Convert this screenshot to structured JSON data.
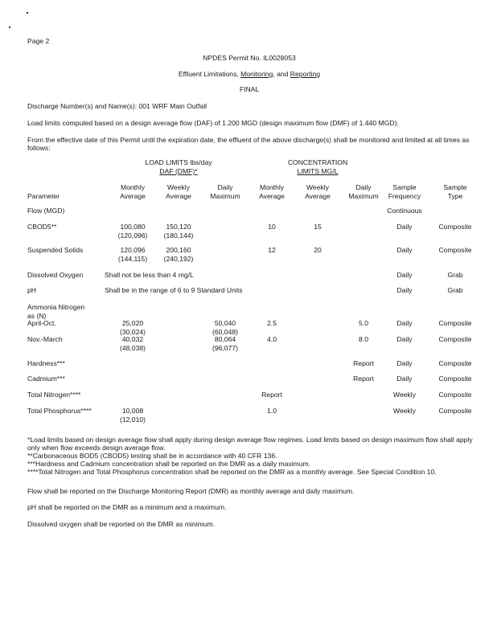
{
  "header": {
    "page_label": "Page 2",
    "permit_number": "NPDES Permit No. IL0028053",
    "section_title_plain": "Effluent Limitations, ",
    "section_title_underlined_1": "Monitoring",
    "section_title_mid": ", and ",
    "section_title_underlined_2": "Reporting",
    "status": "FINAL"
  },
  "intro": {
    "discharge": "Discharge Number(s) and Name(s): 001 WRF Main Outfall",
    "load_basis": "Load limits computed based on a design average flow (DAF) of 1.200 MGD (design maximum flow (DMF) of 1.440 MGD).",
    "effective": "From the effective date of this Permit until the expiration date, the effluent of the above discharge(s) shall be monitored and limited at all times as follows:"
  },
  "table": {
    "group_load_line1": "LOAD LIMITS lbs/day",
    "group_load_line2": "DAF (DMF)*",
    "group_conc_line1": "CONCENTRATION",
    "group_conc_line2": "LIMITS MG/L",
    "columns": {
      "param": "Parameter",
      "load_monthly": "Monthly\nAverage",
      "load_weekly": "Weekly\nAverage",
      "load_daily": "Daily\nMaximum",
      "conc_monthly": "Monthly\nAverage",
      "conc_weekly": "Weekly\nAverage",
      "conc_daily": "Daily\nMaximum",
      "frequency": "Sample\nFrequency",
      "type": "Sample\nType"
    },
    "rows": [
      {
        "param": "Flow (MGD)",
        "frequency": "Continuous"
      },
      {
        "param": "CBOD5**",
        "load_monthly": "100,080\n(120,096)",
        "load_weekly": "150,120\n(180,144)",
        "conc_monthly": "10",
        "conc_weekly": "15",
        "frequency": "Daily",
        "type": "Composite"
      },
      {
        "param": "Suspended Solids",
        "load_monthly": "120,096\n(144,115)",
        "load_weekly": "200,160\n(240,192)",
        "conc_monthly": "12",
        "conc_weekly": "20",
        "frequency": "Daily",
        "type": "Composite"
      },
      {
        "param": "Dissolved Oxygen",
        "span_text": "Shall not be less than 4 mg/L",
        "frequency": "Daily",
        "type": "Grab"
      },
      {
        "param": "pH",
        "span_text": "Shall be in the range of 6 to 9 Standard Units",
        "frequency": "Daily",
        "type": "Grab"
      },
      {
        "param": "Ammonia Nitrogen\n  as (N)"
      },
      {
        "param": "  April-Oct.",
        "load_monthly": "25,020\n(30,024)",
        "load_daily": "50,040\n(60,048)",
        "conc_monthly": "2.5",
        "conc_daily": "5.0",
        "frequency": "Daily",
        "type": "Composite"
      },
      {
        "param": "  Nov.-March",
        "load_monthly": "40,032\n(48,038)",
        "load_daily": "80,064\n(96,077)",
        "conc_monthly": "4.0",
        "conc_daily": "8.0",
        "frequency": "Daily",
        "type": "Composite"
      },
      {
        "param": "Hardness***",
        "conc_daily": "Report",
        "frequency": "Daily",
        "type": "Composite"
      },
      {
        "param": "Cadmium***",
        "conc_daily": "Report",
        "frequency": "Daily",
        "type": "Composite"
      },
      {
        "param": "Total Nitrogen****",
        "conc_monthly": "Report",
        "frequency": "Weekly",
        "type": "Composite"
      },
      {
        "param": "Total Phosphorus****",
        "load_monthly": "10,008\n(12,010)",
        "conc_monthly": "1.0",
        "frequency": "Weekly",
        "type": "Composite"
      }
    ]
  },
  "footnotes": [
    "*Load limits based on design average flow shall apply during design average flow regimes. Load limits based on design maximum flow shall apply only when flow exceeds design average flow.",
    "**Carbonaceous BOD5 (CBOD5) testing shall be in accordance with 40 CFR 136.",
    "***Hardness and Cadmium concentration shall be reported on the DMR as a daily maximum.",
    "****Total Nitrogen and Total Phosphorus concentration shall be reported on the DMR as a monthly average. See Special Condition 10."
  ],
  "notes": [
    "Flow shall be reported on the Discharge Monitoring Report (DMR) as monthly average and daily maximum.",
    "pH shall be reported on the DMR as a minimum and a maximum.",
    "Dissolved oxygen shall be reported on the DMR as minimum."
  ]
}
